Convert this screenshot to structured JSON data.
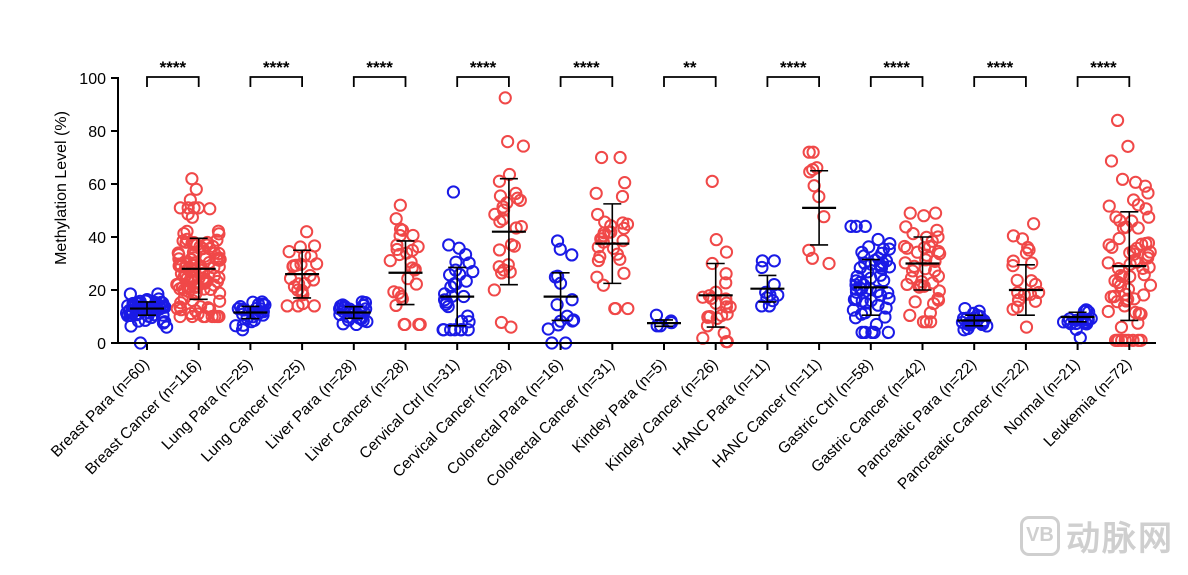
{
  "chart_data": {
    "type": "scatter",
    "title": "",
    "ylabel": "Methylation Level (%)",
    "ylim": [
      0,
      100
    ],
    "yticks": [
      "0",
      "20",
      "40",
      "60",
      "80",
      "100"
    ],
    "colors": {
      "control": "#1a1ae6",
      "cancer": "#f04848",
      "error_bar": "#000000"
    },
    "groups": [
      {
        "label": "Breast Para (n=60)",
        "color_key": "control",
        "mean": 13,
        "sd": 2.5,
        "min": 6,
        "max": 18.5,
        "n": 60,
        "outliers": [
          0
        ]
      },
      {
        "label": "Breast Cancer (n=116)",
        "color_key": "cancer",
        "mean": 28,
        "sd": 11.5,
        "min": 10,
        "max": 51,
        "n": 116,
        "outliers": [
          54,
          58,
          62
        ]
      },
      {
        "label": "Lung Para (n=25)",
        "color_key": "control",
        "mean": 11.5,
        "sd": 2.3,
        "min": 5,
        "max": 15.5,
        "n": 25,
        "outliers": []
      },
      {
        "label": "Lung Cancer (n=25)",
        "color_key": "cancer",
        "mean": 26,
        "sd": 9,
        "min": 14,
        "max": 42,
        "n": 25,
        "outliers": []
      },
      {
        "label": "Liver Para (n=28)",
        "color_key": "control",
        "mean": 11.5,
        "sd": 2.2,
        "min": 7,
        "max": 15.5,
        "n": 28,
        "outliers": []
      },
      {
        "label": "Liver Cancer (n=28)",
        "color_key": "cancer",
        "mean": 26.5,
        "sd": 12,
        "min": 7,
        "max": 52,
        "n": 28,
        "outliers": []
      },
      {
        "label": "Cervical Ctrl (n=31)",
        "color_key": "control",
        "mean": 17.5,
        "sd": 11,
        "min": 5,
        "max": 37,
        "n": 31,
        "outliers": [
          57
        ]
      },
      {
        "label": "Cervical Cancer (n=28)",
        "color_key": "cancer",
        "mean": 42,
        "sd": 20,
        "min": 6,
        "max": 76,
        "n": 28,
        "outliers": [
          92.5
        ]
      },
      {
        "label": "Colorectal Para (n=16)",
        "color_key": "control",
        "mean": 17.5,
        "sd": 9,
        "min": 0,
        "max": 38.5,
        "n": 16,
        "outliers": []
      },
      {
        "label": "Colorectal Cancer (n=31)",
        "color_key": "cancer",
        "mean": 37.5,
        "sd": 15,
        "min": 13,
        "max": 70,
        "n": 31,
        "outliers": []
      },
      {
        "label": "Kindey Para (n=5)",
        "color_key": "control",
        "mean": 7.5,
        "sd": 1.2,
        "min": 6.5,
        "max": 10.5,
        "n": 5,
        "outliers": []
      },
      {
        "label": "Kindey Cancer (n=26)",
        "color_key": "cancer",
        "mean": 18,
        "sd": 12,
        "min": 0.5,
        "max": 39,
        "n": 26,
        "outliers": [
          61
        ]
      },
      {
        "label": "HANC Para (n=11)",
        "color_key": "control",
        "mean": 20.5,
        "sd": 5,
        "min": 14,
        "max": 31,
        "n": 11,
        "outliers": []
      },
      {
        "label": "HANC Cancer (n=11)",
        "color_key": "cancer",
        "mean": 51,
        "sd": 14,
        "min": 30,
        "max": 72,
        "n": 11,
        "outliers": []
      },
      {
        "label": "Gastric Ctrl (n=58)",
        "color_key": "control",
        "mean": 21,
        "sd": 10.5,
        "min": 4,
        "max": 44,
        "n": 58,
        "outliers": []
      },
      {
        "label": "Gastric Cancer (n=42)",
        "color_key": "cancer",
        "mean": 30,
        "sd": 10,
        "min": 8,
        "max": 49,
        "n": 42,
        "outliers": []
      },
      {
        "label": "Pancreatic Para (n=22)",
        "color_key": "control",
        "mean": 8.5,
        "sd": 2,
        "min": 5,
        "max": 13,
        "n": 22,
        "outliers": []
      },
      {
        "label": "Pancreatic Cancer (n=22)",
        "color_key": "cancer",
        "mean": 20,
        "sd": 9.5,
        "min": 6,
        "max": 45,
        "n": 22,
        "outliers": []
      },
      {
        "label": "Normal (n=21)",
        "color_key": "control",
        "mean": 9.8,
        "sd": 1.8,
        "min": 2,
        "max": 12.5,
        "n": 21,
        "outliers": []
      },
      {
        "label": "Leukemia (n=72)",
        "color_key": "cancer",
        "mean": 29,
        "sd": 20.5,
        "min": 1,
        "max": 84,
        "n": 72,
        "outliers": []
      }
    ],
    "comparisons": [
      {
        "from": 0,
        "to": 1,
        "label": "****"
      },
      {
        "from": 2,
        "to": 3,
        "label": "****"
      },
      {
        "from": 4,
        "to": 5,
        "label": "****"
      },
      {
        "from": 6,
        "to": 7,
        "label": "****"
      },
      {
        "from": 8,
        "to": 9,
        "label": "****"
      },
      {
        "from": 10,
        "to": 11,
        "label": "**"
      },
      {
        "from": 12,
        "to": 13,
        "label": "****"
      },
      {
        "from": 14,
        "to": 15,
        "label": "****"
      },
      {
        "from": 16,
        "to": 17,
        "label": "****"
      },
      {
        "from": 18,
        "to": 19,
        "label": "****"
      }
    ]
  },
  "watermark": {
    "logo": "VB",
    "text": "动脉网"
  }
}
